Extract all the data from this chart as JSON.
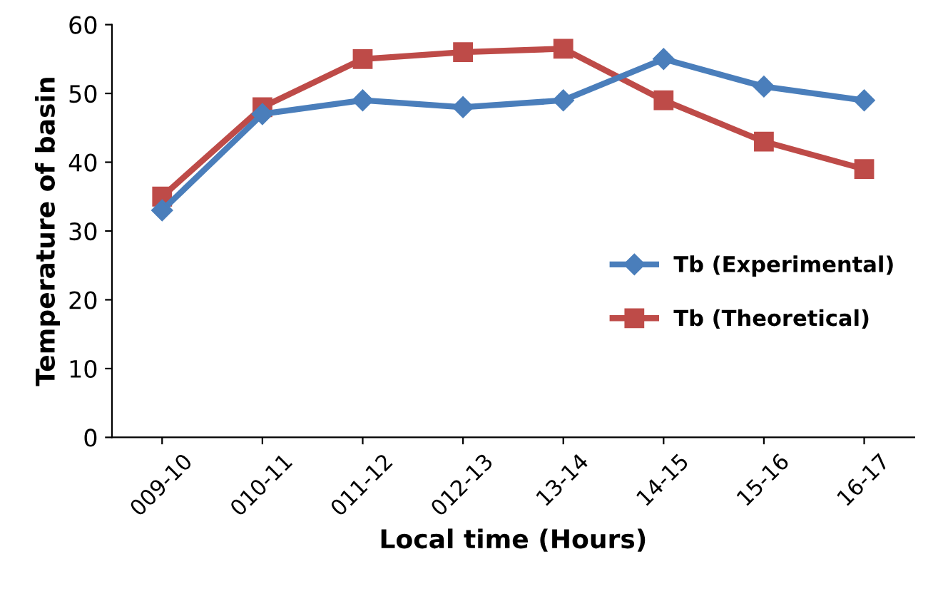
{
  "chart_data": {
    "type": "line",
    "xlabel": "Local time (Hours)",
    "ylabel": "Temperature of basin",
    "categories": [
      "009-10",
      "010-11",
      "011-12",
      "012-13",
      "13-14",
      "14-15",
      "15-16",
      "16-17"
    ],
    "series": [
      {
        "name": "Tb (Experimental)",
        "color": "#4a7ebb",
        "marker": "diamond",
        "values": [
          33,
          47,
          49,
          48,
          49,
          55,
          51,
          49
        ]
      },
      {
        "name": "Tb (Theoretical)",
        "color": "#be4b48",
        "marker": "square",
        "values": [
          35,
          48,
          55,
          56,
          56.5,
          49,
          43,
          39
        ]
      }
    ],
    "ylim": [
      0,
      60
    ],
    "yticks": [
      0,
      10,
      20,
      30,
      40,
      50,
      60
    ],
    "grid": false,
    "legend": "right",
    "line_style": "solid"
  }
}
